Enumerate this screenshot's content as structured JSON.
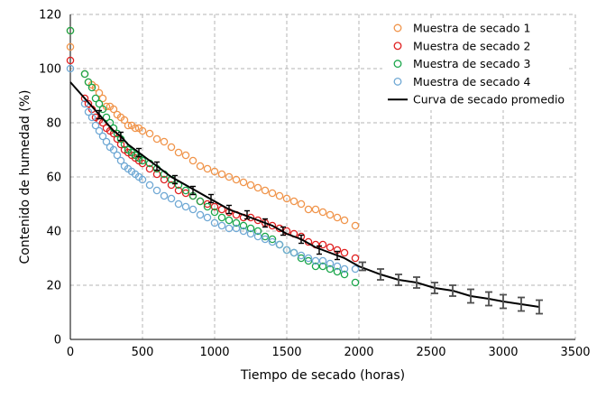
{
  "chart_data": {
    "type": "scatter",
    "title": "",
    "xlabel": "Tiempo de secado (horas)",
    "ylabel": "Contenido de humedad (%)",
    "xlim": [
      0,
      3500
    ],
    "ylim": [
      0,
      120
    ],
    "xticks": [
      "0",
      "500",
      "1000",
      "1500",
      "2000",
      "2500",
      "3000",
      "3500"
    ],
    "yticks": [
      "0",
      "20",
      "40",
      "60",
      "80",
      "100",
      "120"
    ],
    "grid": true,
    "legend_position": "top-right",
    "series": [
      {
        "name": "Muestra de secado 1",
        "color": "#f0944a",
        "marker": "open-circle",
        "x": [
          0,
          0,
          100,
          125,
          150,
          175,
          200,
          225,
          250,
          275,
          300,
          325,
          350,
          375,
          400,
          425,
          450,
          475,
          500,
          550,
          600,
          650,
          700,
          750,
          800,
          850,
          900,
          950,
          1000,
          1050,
          1100,
          1150,
          1200,
          1250,
          1300,
          1350,
          1400,
          1450,
          1500,
          1550,
          1600,
          1650,
          1700,
          1750,
          1800,
          1850,
          1900,
          1975
        ],
        "y": [
          114,
          108,
          98,
          95,
          94,
          93,
          91,
          89,
          86,
          86,
          85,
          83,
          82,
          81,
          79,
          79,
          78,
          78,
          77,
          76,
          74,
          73,
          71,
          69,
          68,
          66,
          64,
          63,
          62,
          61,
          60,
          59,
          58,
          57,
          56,
          55,
          54,
          53,
          52,
          51,
          50,
          48,
          48,
          47,
          46,
          45,
          44,
          42
        ]
      },
      {
        "name": "Muestra de secado 2",
        "color": "#e02020",
        "marker": "open-circle",
        "x": [
          0,
          100,
          125,
          150,
          175,
          200,
          225,
          250,
          275,
          300,
          325,
          350,
          375,
          400,
          425,
          450,
          475,
          500,
          550,
          600,
          650,
          700,
          750,
          800,
          850,
          900,
          950,
          1000,
          1050,
          1100,
          1150,
          1200,
          1250,
          1300,
          1350,
          1400,
          1450,
          1500,
          1550,
          1600,
          1650,
          1700,
          1750,
          1800,
          1850,
          1900,
          1975
        ],
        "y": [
          103,
          89,
          87,
          85,
          82,
          81,
          80,
          78,
          77,
          76,
          74,
          72,
          70,
          69,
          68,
          67,
          66,
          65,
          63,
          61,
          59,
          57,
          55,
          54,
          53,
          51,
          50,
          49,
          48,
          47,
          46,
          45,
          45,
          44,
          43,
          42,
          41,
          40,
          39,
          38,
          36,
          35,
          35,
          34,
          33,
          32,
          30
        ]
      },
      {
        "name": "Muestra de secado 3",
        "color": "#1aa64a",
        "marker": "open-circle",
        "x": [
          0,
          100,
          125,
          150,
          175,
          200,
          225,
          250,
          275,
          300,
          325,
          350,
          375,
          400,
          425,
          450,
          475,
          500,
          550,
          600,
          650,
          700,
          750,
          800,
          850,
          900,
          950,
          1000,
          1050,
          1100,
          1150,
          1200,
          1250,
          1300,
          1350,
          1400,
          1450,
          1500,
          1550,
          1600,
          1650,
          1700,
          1750,
          1800,
          1850,
          1900,
          1975
        ],
        "y": [
          114,
          98,
          95,
          93,
          89,
          87,
          85,
          82,
          80,
          78,
          76,
          74,
          72,
          70,
          69,
          68,
          67,
          66,
          65,
          63,
          61,
          59,
          57,
          55,
          53,
          51,
          49,
          47,
          45,
          44,
          43,
          42,
          41,
          40,
          38,
          37,
          35,
          33,
          32,
          30,
          29,
          27,
          27,
          26,
          25,
          24,
          21
        ]
      },
      {
        "name": "Muestra de secado 4",
        "color": "#6fa8d4",
        "marker": "open-circle",
        "x": [
          0,
          100,
          125,
          150,
          175,
          200,
          225,
          250,
          275,
          300,
          325,
          350,
          375,
          400,
          425,
          450,
          475,
          500,
          550,
          600,
          650,
          700,
          750,
          800,
          850,
          900,
          950,
          1000,
          1050,
          1100,
          1150,
          1200,
          1250,
          1300,
          1350,
          1400,
          1450,
          1500,
          1550,
          1600,
          1650,
          1700,
          1750,
          1800,
          1850,
          1900,
          1975
        ],
        "y": [
          100,
          87,
          84,
          82,
          79,
          77,
          75,
          73,
          71,
          70,
          68,
          66,
          64,
          63,
          62,
          61,
          60,
          59,
          57,
          55,
          53,
          52,
          50,
          49,
          48,
          46,
          45,
          43,
          42,
          41,
          41,
          40,
          39,
          38,
          37,
          36,
          35,
          33,
          32,
          31,
          30,
          29,
          29,
          28,
          27,
          26,
          26
        ]
      },
      {
        "name": "Curva de secado promedio",
        "color": "#000000",
        "marker": "line-with-errorbars",
        "x": [
          0,
          50,
          100,
          150,
          200,
          250,
          300,
          350,
          400,
          450,
          500,
          600,
          700,
          800,
          900,
          1000,
          1100,
          1200,
          1300,
          1400,
          1500,
          1600,
          1700,
          1800,
          1900,
          2000,
          2150,
          2275,
          2400,
          2525,
          2650,
          2775,
          2900,
          3000,
          3125,
          3250
        ],
        "y": [
          95,
          92,
          89,
          86,
          83,
          80,
          77,
          75,
          72,
          70,
          68,
          64,
          60,
          57,
          54,
          51,
          48,
          46,
          44,
          42,
          39,
          37,
          34,
          32,
          30,
          27,
          24,
          22,
          21,
          19,
          18,
          16,
          15,
          14,
          13,
          12
        ],
        "errorbars": [
          {
            "x": 200,
            "y": 83,
            "err": 1.5
          },
          {
            "x": 350,
            "y": 75,
            "err": 1.5
          },
          {
            "x": 475,
            "y": 69,
            "err": 1.5
          },
          {
            "x": 600,
            "y": 64,
            "err": 1.5
          },
          {
            "x": 725,
            "y": 59,
            "err": 1.5
          },
          {
            "x": 850,
            "y": 55,
            "err": 1.5
          },
          {
            "x": 975,
            "y": 52,
            "err": 1.5
          },
          {
            "x": 1100,
            "y": 48,
            "err": 1.5
          },
          {
            "x": 1225,
            "y": 46,
            "err": 1.5
          },
          {
            "x": 1350,
            "y": 43,
            "err": 1.5
          },
          {
            "x": 1475,
            "y": 40,
            "err": 1.5
          },
          {
            "x": 1600,
            "y": 37,
            "err": 1.5
          },
          {
            "x": 1725,
            "y": 33,
            "err": 1.5
          },
          {
            "x": 1850,
            "y": 31,
            "err": 1.5
          },
          {
            "x": 2025,
            "y": 27,
            "err": 1.5
          },
          {
            "x": 2150,
            "y": 24,
            "err": 2
          },
          {
            "x": 2275,
            "y": 22,
            "err": 2
          },
          {
            "x": 2400,
            "y": 21,
            "err": 2
          },
          {
            "x": 2525,
            "y": 19,
            "err": 2
          },
          {
            "x": 2650,
            "y": 18,
            "err": 2
          },
          {
            "x": 2775,
            "y": 16,
            "err": 2.5
          },
          {
            "x": 2900,
            "y": 15,
            "err": 2.5
          },
          {
            "x": 3000,
            "y": 14,
            "err": 2.5
          },
          {
            "x": 3125,
            "y": 13,
            "err": 2.5
          },
          {
            "x": 3250,
            "y": 12,
            "err": 2.5
          }
        ]
      }
    ]
  }
}
